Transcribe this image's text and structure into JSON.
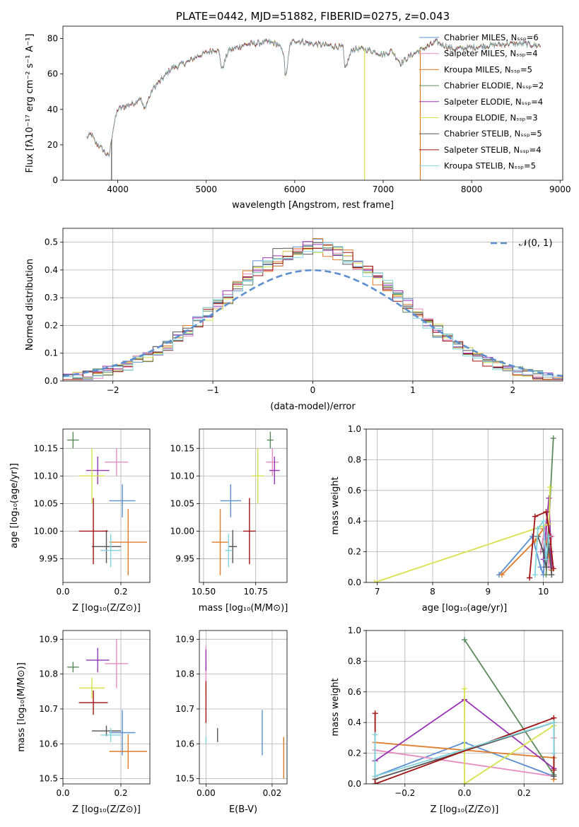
{
  "colors": [
    "#5b8fd0",
    "#e78bc1",
    "#e07b2a",
    "#5a8a5a",
    "#9a33b5",
    "#d7e14a",
    "#555555",
    "#a01212",
    "#7fd4dd"
  ],
  "chart_data": [
    {
      "type": "line",
      "title": "PLATE=0442, MJD=51882, FIBERID=0275, z=0.043",
      "xlabel": "wavelength [Angstrom, rest frame]",
      "ylabel": "Flux [fλ10⁻¹⁷ erg cm⁻² s⁻¹ A⁻¹]",
      "xlim": [
        3380,
        9030
      ],
      "ylim": [
        0,
        87
      ],
      "xticks": [
        4000,
        5000,
        6000,
        7000,
        8000,
        9000
      ],
      "yticks": [
        0,
        20,
        40,
        60,
        80
      ],
      "legend_position": "top-right",
      "series": [
        {
          "name": "Chabrier MILES, N_SSP=6"
        },
        {
          "name": "Salpeter MILES, N_SSP=4"
        },
        {
          "name": "Kroupa MILES, N_SSP=5"
        },
        {
          "name": "Chabrier ELODIE, N_SSP=2"
        },
        {
          "name": "Salpeter ELODIE, N_SSP=4"
        },
        {
          "name": "Kroupa ELODIE, N_SSP=3"
        },
        {
          "name": "Chabrier STELIB, N_SSP=5"
        },
        {
          "name": "Salpeter STELIB, N_SSP=4"
        },
        {
          "name": "Kroupa STELIB, N_SSP=5"
        }
      ],
      "spectrum_knots": [
        [
          3650,
          24
        ],
        [
          3700,
          26
        ],
        [
          3750,
          21
        ],
        [
          3800,
          19
        ],
        [
          3850,
          16
        ],
        [
          3900,
          13
        ],
        [
          3950,
          30
        ],
        [
          4000,
          40
        ],
        [
          4100,
          42
        ],
        [
          4200,
          44
        ],
        [
          4250,
          47
        ],
        [
          4300,
          40
        ],
        [
          4400,
          52
        ],
        [
          4500,
          57
        ],
        [
          4600,
          63
        ],
        [
          4700,
          65
        ],
        [
          4800,
          67
        ],
        [
          4900,
          70
        ],
        [
          5000,
          72
        ],
        [
          5100,
          74
        ],
        [
          5150,
          72
        ],
        [
          5175,
          62
        ],
        [
          5250,
          73
        ],
        [
          5400,
          76
        ],
        [
          5500,
          77
        ],
        [
          5700,
          78
        ],
        [
          5800,
          77
        ],
        [
          5880,
          72
        ],
        [
          5893,
          56
        ],
        [
          5950,
          77
        ],
        [
          6000,
          79
        ],
        [
          6200,
          77
        ],
        [
          6400,
          76
        ],
        [
          6550,
          75
        ],
        [
          6563,
          62
        ],
        [
          6650,
          74
        ],
        [
          6800,
          74
        ],
        [
          7000,
          71
        ],
        [
          7100,
          73
        ],
        [
          7200,
          66
        ],
        [
          7300,
          70
        ],
        [
          7400,
          73
        ],
        [
          7600,
          78
        ],
        [
          7800,
          74
        ],
        [
          8000,
          75
        ],
        [
          8200,
          76
        ],
        [
          8400,
          77
        ],
        [
          8600,
          77
        ],
        [
          8750,
          76
        ]
      ]
    },
    {
      "type": "line",
      "xlabel": "(data-model)/error",
      "ylabel": "Normed distribution",
      "xlim": [
        -2.5,
        2.5
      ],
      "ylim": [
        0,
        0.55
      ],
      "xticks": [
        -2,
        -1,
        0,
        1,
        2
      ],
      "yticks": [
        0.0,
        0.1,
        0.2,
        0.3,
        0.4,
        0.5
      ],
      "grid": true,
      "legend_position": "top-right",
      "legend": [
        "𝒩(0, 1)"
      ],
      "bin_width": 0.1
    },
    {
      "type": "scatter",
      "xlabel": "Z [log₁₀(Z/Z⊙)]",
      "ylabel": "age  [log₁₀(age/yr)]",
      "xlim": [
        0,
        0.3
      ],
      "ylim": [
        9.907,
        10.185
      ],
      "xticks": [
        0.0,
        0.2
      ],
      "yticks": [
        9.95,
        10.0,
        10.05,
        10.1,
        10.15
      ],
      "grid": true,
      "points": [
        {
          "x": 0.205,
          "y": 10.055,
          "xerr": 0.045,
          "yerr": 0.03
        },
        {
          "x": 0.185,
          "y": 10.125,
          "xerr": 0.04,
          "yerr": 0.025
        },
        {
          "x": 0.225,
          "y": 9.98,
          "xerr": 0.065,
          "yerr": 0.06
        },
        {
          "x": 0.035,
          "y": 10.165,
          "xerr": 0.02,
          "yerr": 0.015
        },
        {
          "x": 0.12,
          "y": 10.11,
          "xerr": 0.04,
          "yerr": 0.025
        },
        {
          "x": 0.1,
          "y": 10.1,
          "xerr": 0.045,
          "yerr": 0.05
        },
        {
          "x": 0.15,
          "y": 9.972,
          "xerr": 0.05,
          "yerr": 0.03
        },
        {
          "x": 0.105,
          "y": 10.0,
          "xerr": 0.05,
          "yerr": 0.06
        },
        {
          "x": 0.165,
          "y": 9.965,
          "xerr": 0.035,
          "yerr": 0.03
        }
      ]
    },
    {
      "type": "scatter",
      "xlabel": "mass [log₁₀(M/M⊙)]",
      "xlim": [
        10.48,
        10.9
      ],
      "ylim": [
        9.907,
        10.185
      ],
      "xticks": [
        10.5,
        10.75
      ],
      "yticks": [
        9.95,
        10.0,
        10.05,
        10.1,
        10.15
      ],
      "grid": true,
      "points": [
        {
          "x": 10.63,
          "y": 10.055,
          "xerr": 0.05,
          "yerr": 0.03
        },
        {
          "x": 10.83,
          "y": 10.125,
          "xerr": 0.03,
          "yerr": 0.025
        },
        {
          "x": 10.58,
          "y": 9.98,
          "xerr": 0.04,
          "yerr": 0.06
        },
        {
          "x": 10.82,
          "y": 10.165,
          "xerr": 0.015,
          "yerr": 0.015
        },
        {
          "x": 10.84,
          "y": 10.11,
          "xerr": 0.025,
          "yerr": 0.025
        },
        {
          "x": 10.76,
          "y": 10.1,
          "xerr": 0.03,
          "yerr": 0.05
        },
        {
          "x": 10.64,
          "y": 9.972,
          "xerr": 0.02,
          "yerr": 0.03
        },
        {
          "x": 10.72,
          "y": 10.0,
          "xerr": 0.03,
          "yerr": 0.06
        },
        {
          "x": 10.62,
          "y": 9.965,
          "xerr": 0.015,
          "yerr": 0.03
        }
      ]
    },
    {
      "type": "line",
      "xlabel": "age  [log₁₀(age/yr)]",
      "ylabel": "mass weight",
      "xlim": [
        6.8,
        10.35
      ],
      "ylim": [
        0,
        1
      ],
      "xticks": [
        7,
        8,
        9,
        10
      ],
      "yticks": [
        0.0,
        0.2,
        0.4,
        0.6,
        0.8,
        1.0
      ],
      "grid": true,
      "series": [
        [
          [
            9.2,
            0.05
          ],
          [
            9.8,
            0.3
          ],
          [
            9.95,
            0.1
          ],
          [
            10.0,
            0.05
          ],
          [
            10.05,
            0.28
          ],
          [
            10.1,
            0.15
          ]
        ],
        [
          [
            9.95,
            0.2
          ],
          [
            10.05,
            0.4
          ],
          [
            10.1,
            0.1
          ],
          [
            10.15,
            0.3
          ]
        ],
        [
          [
            9.25,
            0.05
          ],
          [
            9.85,
            0.27
          ],
          [
            10.0,
            0.35
          ],
          [
            10.1,
            0.18
          ],
          [
            10.15,
            0.08
          ]
        ],
        [
          [
            10.05,
            0.05
          ],
          [
            10.18,
            0.94
          ]
        ],
        [
          [
            10.0,
            0.15
          ],
          [
            10.1,
            0.55
          ],
          [
            10.15,
            0.1
          ],
          [
            10.13,
            0.2
          ]
        ],
        [
          [
            6.95,
            0.0
          ],
          [
            10.1,
            0.38
          ],
          [
            10.12,
            0.62
          ]
        ],
        [
          [
            9.9,
            0.3
          ],
          [
            10.0,
            0.2
          ],
          [
            10.05,
            0.1
          ],
          [
            10.1,
            0.25
          ],
          [
            10.15,
            0.05
          ]
        ],
        [
          [
            9.75,
            0.03
          ],
          [
            9.85,
            0.43
          ],
          [
            10.05,
            0.46
          ],
          [
            10.12,
            0.3
          ],
          [
            10.18,
            0.09
          ]
        ],
        [
          [
            9.85,
            0.05
          ],
          [
            9.9,
            0.35
          ],
          [
            10.0,
            0.4
          ],
          [
            10.05,
            0.15
          ],
          [
            10.1,
            0.3
          ]
        ]
      ]
    },
    {
      "type": "scatter",
      "xlabel": "Z [log₁₀(Z/Z⊙)]",
      "ylabel": "mass [log₁₀(M/M⊙)]",
      "xlim": [
        0,
        0.3
      ],
      "ylim": [
        10.485,
        10.925
      ],
      "xticks": [
        0.0,
        0.2
      ],
      "yticks": [
        10.5,
        10.6,
        10.7,
        10.8,
        10.9
      ],
      "grid": true,
      "points": [
        {
          "x": 0.205,
          "y": 10.632,
          "xerr": 0.045,
          "yerr": 0.065
        },
        {
          "x": 0.185,
          "y": 10.83,
          "xerr": 0.04,
          "yerr": 0.07
        },
        {
          "x": 0.225,
          "y": 10.578,
          "xerr": 0.065,
          "yerr": 0.05
        },
        {
          "x": 0.035,
          "y": 10.82,
          "xerr": 0.02,
          "yerr": 0.015
        },
        {
          "x": 0.12,
          "y": 10.84,
          "xerr": 0.04,
          "yerr": 0.035
        },
        {
          "x": 0.1,
          "y": 10.76,
          "xerr": 0.045,
          "yerr": 0.03
        },
        {
          "x": 0.15,
          "y": 10.637,
          "xerr": 0.05,
          "yerr": 0.015
        },
        {
          "x": 0.105,
          "y": 10.718,
          "xerr": 0.05,
          "yerr": 0.035
        },
        {
          "x": 0.165,
          "y": 10.625,
          "xerr": 0.035,
          "yerr": 0.02
        }
      ]
    },
    {
      "type": "scatter",
      "xlabel": "E(B-V)",
      "xlim": [
        -0.002,
        0.0245
      ],
      "ylim": [
        10.485,
        10.925
      ],
      "xticks": [
        0.0,
        0.02
      ],
      "yticks": [
        10.5,
        10.6,
        10.7,
        10.8,
        10.9
      ],
      "grid": true,
      "points": [
        {
          "x": 0.017,
          "y": 10.632,
          "xerr": 0.0,
          "yerr": 0.065
        },
        {
          "x": 0.0,
          "y": 10.83,
          "xerr": 0.0,
          "yerr": 0.05
        },
        {
          "x": 0.0235,
          "y": 10.56,
          "xerr": 0.0,
          "yerr": 0.06
        },
        {
          "x": 0.0,
          "y": 10.82,
          "xerr": 0.0,
          "yerr": 0.01
        },
        {
          "x": 0.0,
          "y": 10.84,
          "xerr": 0.0,
          "yerr": 0.03
        },
        {
          "x": 0.0,
          "y": 10.76,
          "xerr": 0.0,
          "yerr": 0.01
        },
        {
          "x": 0.0035,
          "y": 10.625,
          "xerr": 0.0,
          "yerr": 0.02
        },
        {
          "x": 0.0,
          "y": 10.72,
          "xerr": 0.0,
          "yerr": 0.06
        },
        {
          "x": 0.0,
          "y": 10.61,
          "xerr": 0.0,
          "yerr": 0.01
        }
      ]
    },
    {
      "type": "line",
      "xlabel": "Z [log₁₀(Z/Z⊙)]",
      "ylabel": "mass weight",
      "xlim": [
        -0.33,
        0.33
      ],
      "ylim": [
        0,
        1
      ],
      "xticks": [
        -0.2,
        0.0,
        0.2
      ],
      "yticks": [
        0.0,
        0.2,
        0.4,
        0.6,
        0.8,
        1.0
      ],
      "grid": true,
      "series": [
        [
          [
            -0.3,
            0.05
          ],
          [
            0.0,
            0.27
          ],
          [
            0.3,
            0.05
          ],
          [
            0.3,
            0.4
          ]
        ],
        [
          [
            -0.3,
            0.22
          ],
          [
            0.3,
            0.05
          ],
          [
            0.3,
            0.3
          ]
        ],
        [
          [
            -0.3,
            0.27
          ],
          [
            0.3,
            0.17
          ],
          [
            0.3,
            0.03
          ]
        ],
        [
          [
            0.0,
            0.94
          ],
          [
            0.3,
            0.06
          ]
        ],
        [
          [
            -0.3,
            0.15
          ],
          [
            0.0,
            0.55
          ],
          [
            0.3,
            0.1
          ]
        ],
        [
          [
            0.0,
            0.62
          ],
          [
            0.0,
            0.0
          ],
          [
            0.3,
            0.38
          ]
        ],
        [
          [
            -0.3,
            0.03
          ],
          [
            0.3,
            0.4
          ],
          [
            0.3,
            0.05
          ]
        ],
        [
          [
            -0.3,
            0.46
          ],
          [
            -0.3,
            0.0
          ],
          [
            0.3,
            0.43
          ],
          [
            0.3,
            0.09
          ]
        ],
        [
          [
            -0.3,
            0.32
          ],
          [
            -0.3,
            0.05
          ],
          [
            0.3,
            0.4
          ],
          [
            0.3,
            0.2
          ]
        ]
      ]
    }
  ]
}
